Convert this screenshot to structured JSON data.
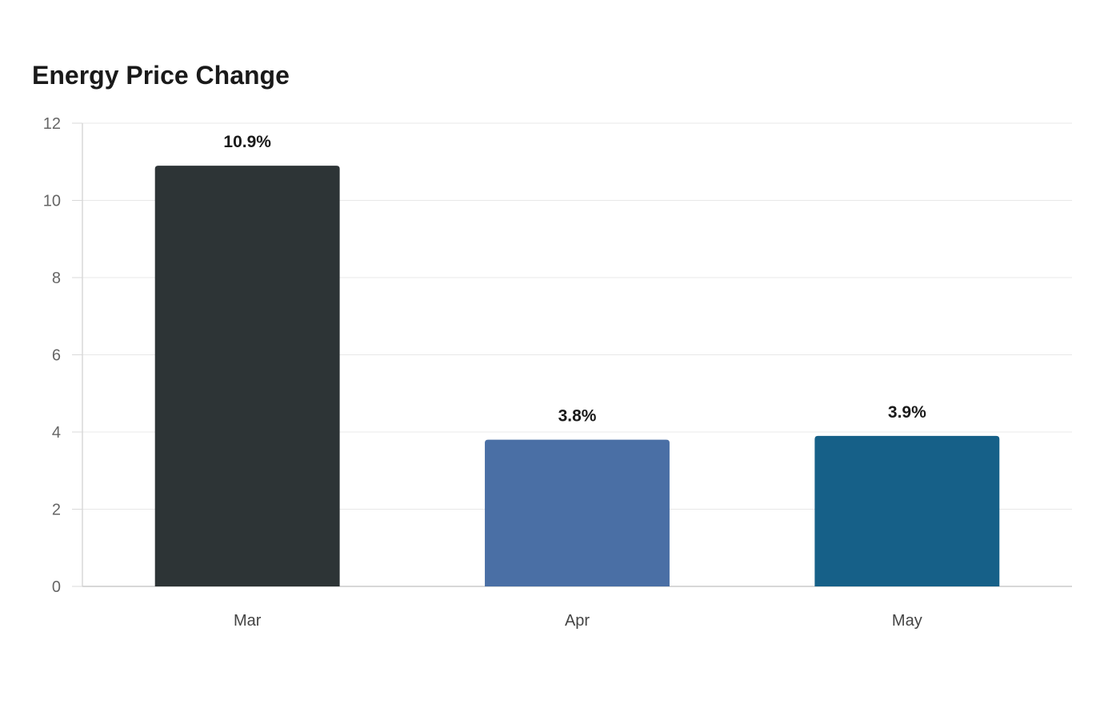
{
  "chart_data": {
    "type": "bar",
    "title": "Energy Price Change",
    "xlabel": "",
    "ylabel": "",
    "categories": [
      "Mar",
      "Apr",
      "May"
    ],
    "values": [
      10.9,
      3.8,
      3.9
    ],
    "data_labels": [
      "10.9%",
      "3.8%",
      "3.9%"
    ],
    "bar_colors": [
      "#2d3436",
      "#4a6fa5",
      "#166088"
    ],
    "ylim": [
      0,
      12
    ],
    "yticks": [
      0,
      2,
      4,
      6,
      8,
      10,
      12
    ],
    "grid": true,
    "legend": "none"
  }
}
